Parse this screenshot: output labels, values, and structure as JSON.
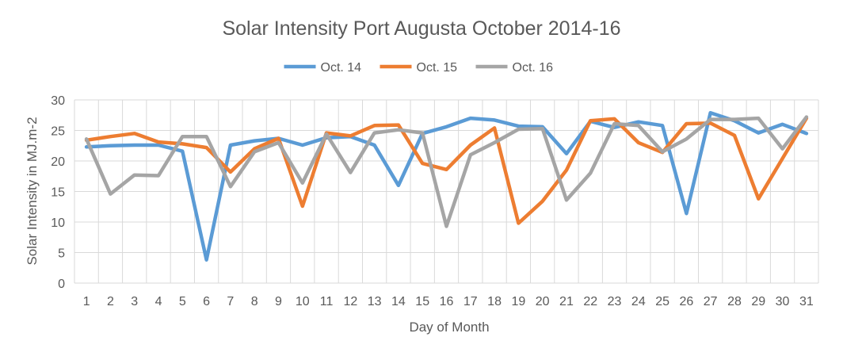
{
  "chart_data": {
    "type": "line",
    "title": "Solar Intensity Port Augusta October 2014-16",
    "xlabel": "Day of Month",
    "ylabel": "Solar Intensity in MJ.m-2",
    "ylim": [
      0,
      30
    ],
    "yticks": [
      0,
      5,
      10,
      15,
      20,
      25,
      30
    ],
    "grid": "vertical and horizontal gridlines",
    "legend_position": "top",
    "categories": [
      "1",
      "2",
      "3",
      "4",
      "5",
      "6",
      "7",
      "8",
      "9",
      "10",
      "11",
      "12",
      "13",
      "14",
      "15",
      "16",
      "17",
      "18",
      "19",
      "20",
      "21",
      "22",
      "23",
      "24",
      "25",
      "26",
      "27",
      "28",
      "29",
      "30",
      "31"
    ],
    "series": [
      {
        "name": "Oct. 14",
        "color": "#5b9bd5",
        "values": [
          22.3,
          22.5,
          22.6,
          22.6,
          21.6,
          3.8,
          22.6,
          23.3,
          23.7,
          22.6,
          23.8,
          24.0,
          22.6,
          16.0,
          24.5,
          25.6,
          27.0,
          26.7,
          25.7,
          25.6,
          21.2,
          26.5,
          25.5,
          26.4,
          25.8,
          11.4,
          27.9,
          26.6,
          24.6,
          26.0,
          24.5
        ]
      },
      {
        "name": "Oct. 15",
        "color": "#ed7d31",
        "values": [
          23.4,
          24.0,
          24.5,
          23.1,
          22.8,
          22.2,
          18.2,
          22.0,
          23.7,
          12.6,
          24.6,
          24.1,
          25.8,
          25.9,
          19.6,
          18.6,
          22.6,
          25.4,
          9.8,
          13.4,
          18.5,
          26.6,
          26.9,
          23.0,
          21.4,
          26.1,
          26.2,
          24.2,
          13.8,
          20.4,
          27.0
        ]
      },
      {
        "name": "Oct. 16",
        "color": "#a5a5a5",
        "values": [
          23.6,
          14.6,
          17.7,
          17.6,
          24.0,
          24.0,
          15.8,
          21.5,
          23.0,
          16.4,
          24.4,
          18.1,
          24.6,
          25.1,
          24.6,
          9.3,
          21.0,
          23.0,
          25.2,
          25.3,
          13.6,
          18.0,
          26.1,
          25.8,
          21.5,
          23.6,
          26.8,
          26.8,
          27.0,
          22.0,
          27.2
        ]
      }
    ]
  }
}
